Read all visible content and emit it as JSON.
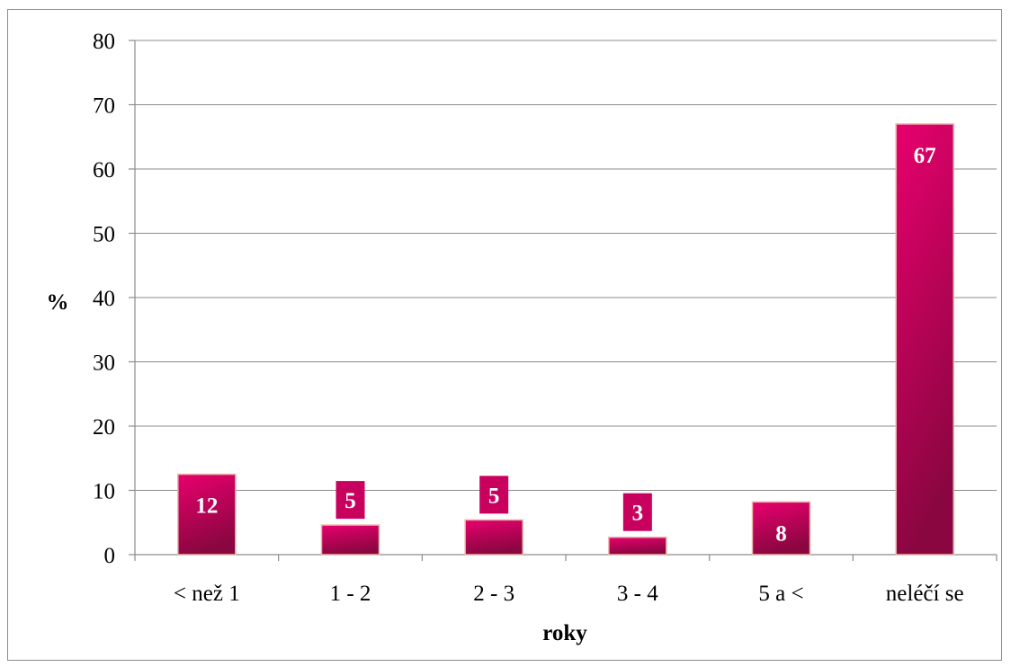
{
  "chart_data": {
    "type": "bar",
    "title": "",
    "xlabel": "roky",
    "ylabel": "%",
    "categories": [
      "< než 1",
      "1 - 2",
      "2 - 3",
      "3 - 4",
      "5 a <",
      "neléčí se"
    ],
    "values": [
      12,
      5,
      5,
      3,
      8,
      67
    ],
    "data_labels": [
      "12",
      "5",
      "5",
      "3",
      "8",
      "67"
    ],
    "bar_heights": [
      12.5,
      4.6,
      5.4,
      2.7,
      8.2,
      67
    ],
    "ylim": [
      0,
      80
    ],
    "yticks": [
      "0",
      "10",
      "20",
      "30",
      "40",
      "50",
      "60",
      "70",
      "80"
    ],
    "ytick_values": [
      0,
      10,
      20,
      30,
      40,
      50,
      60,
      70,
      80
    ],
    "grid": true,
    "legend": "none",
    "bar_color_top": "#e8006e",
    "bar_color_bottom": "#8a0640",
    "bar_edge_color": "#e8b2a8",
    "label_box_color": "#c8005e"
  }
}
